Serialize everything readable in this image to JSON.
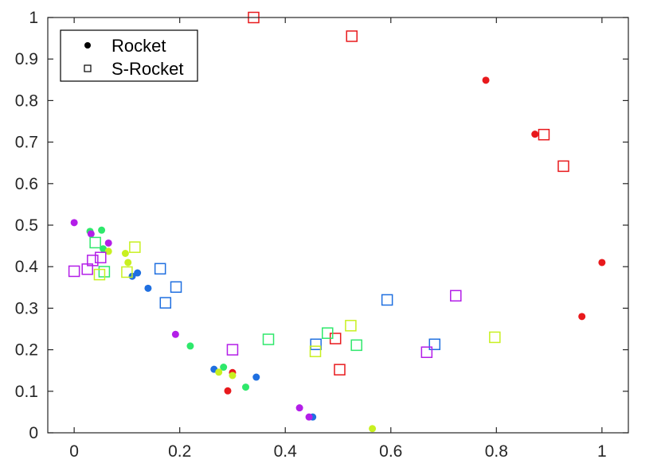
{
  "chart_data": {
    "type": "scatter",
    "xlim": [
      -0.05,
      1.05
    ],
    "ylim": [
      0,
      1
    ],
    "xticks": [
      0,
      0.2,
      0.4,
      0.6,
      0.8,
      1
    ],
    "xtick_labels": [
      "0",
      "0.2",
      "0.4",
      "0.6",
      "0.8",
      "1"
    ],
    "yticks": [
      0,
      0.1,
      0.2,
      0.3,
      0.4,
      0.5,
      0.6,
      0.7,
      0.8,
      0.9,
      1
    ],
    "ytick_labels": [
      "0",
      "0.1",
      "0.2",
      "0.3",
      "0.4",
      "0.5",
      "0.6",
      "0.7",
      "0.8",
      "0.9",
      "1"
    ],
    "grid": false,
    "legend_position": "top-left",
    "legend": [
      {
        "label": "Rocket",
        "marker": "dot"
      },
      {
        "label": "S-Rocket",
        "marker": "square"
      }
    ],
    "colors": {
      "red": "#e8191c",
      "blue": "#1f6fe0",
      "green": "#2ee86b",
      "yellow": "#c8f020",
      "purple": "#b31ee8"
    },
    "series": [
      {
        "marker": "dot",
        "color": "red",
        "points": [
          [
            0.78,
            0.849
          ],
          [
            0.873,
            0.719
          ],
          [
            0.962,
            0.28
          ],
          [
            1.0,
            0.41
          ],
          [
            0.291,
            0.101
          ],
          [
            0.3,
            0.145
          ]
        ]
      },
      {
        "marker": "dot",
        "color": "blue",
        "points": [
          [
            0.11,
            0.377
          ],
          [
            0.12,
            0.385
          ],
          [
            0.14,
            0.348
          ],
          [
            0.265,
            0.153
          ],
          [
            0.345,
            0.134
          ],
          [
            0.452,
            0.038
          ]
        ]
      },
      {
        "marker": "dot",
        "color": "green",
        "points": [
          [
            0.03,
            0.485
          ],
          [
            0.052,
            0.488
          ],
          [
            0.055,
            0.443
          ],
          [
            0.22,
            0.209
          ],
          [
            0.283,
            0.158
          ],
          [
            0.325,
            0.11
          ]
        ]
      },
      {
        "marker": "dot",
        "color": "yellow",
        "points": [
          [
            0.065,
            0.437
          ],
          [
            0.097,
            0.432
          ],
          [
            0.102,
            0.41
          ],
          [
            0.274,
            0.146
          ],
          [
            0.3,
            0.138
          ],
          [
            0.565,
            0.01
          ]
        ]
      },
      {
        "marker": "dot",
        "color": "purple",
        "points": [
          [
            0.0,
            0.506
          ],
          [
            0.032,
            0.479
          ],
          [
            0.065,
            0.457
          ],
          [
            0.192,
            0.237
          ],
          [
            0.427,
            0.06
          ],
          [
            0.445,
            0.038
          ]
        ]
      },
      {
        "marker": "square",
        "color": "red",
        "points": [
          [
            0.34,
            1.0
          ],
          [
            0.526,
            0.955
          ],
          [
            0.89,
            0.718
          ],
          [
            0.927,
            0.642
          ],
          [
            0.495,
            0.227
          ],
          [
            0.503,
            0.152
          ]
        ]
      },
      {
        "marker": "square",
        "color": "blue",
        "points": [
          [
            0.163,
            0.395
          ],
          [
            0.173,
            0.313
          ],
          [
            0.193,
            0.351
          ],
          [
            0.458,
            0.213
          ],
          [
            0.593,
            0.32
          ],
          [
            0.683,
            0.213
          ]
        ]
      },
      {
        "marker": "square",
        "color": "green",
        "points": [
          [
            0.04,
            0.458
          ],
          [
            0.057,
            0.388
          ],
          [
            0.368,
            0.225
          ],
          [
            0.48,
            0.24
          ],
          [
            0.535,
            0.211
          ]
        ]
      },
      {
        "marker": "square",
        "color": "yellow",
        "points": [
          [
            0.048,
            0.381
          ],
          [
            0.1,
            0.387
          ],
          [
            0.115,
            0.447
          ],
          [
            0.457,
            0.196
          ],
          [
            0.524,
            0.258
          ],
          [
            0.797,
            0.23
          ]
        ]
      },
      {
        "marker": "square",
        "color": "purple",
        "points": [
          [
            0.0,
            0.389
          ],
          [
            0.025,
            0.394
          ],
          [
            0.035,
            0.415
          ],
          [
            0.05,
            0.422
          ],
          [
            0.3,
            0.2
          ],
          [
            0.668,
            0.194
          ],
          [
            0.723,
            0.33
          ]
        ]
      }
    ]
  }
}
